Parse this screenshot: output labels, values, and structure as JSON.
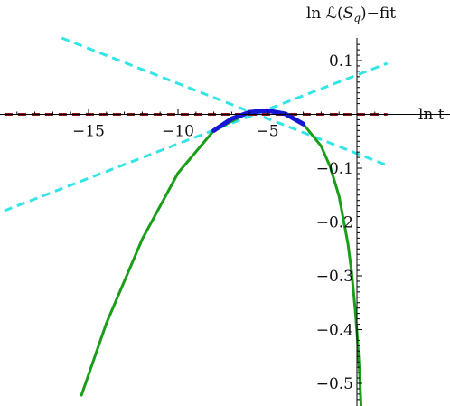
{
  "chart_data": {
    "type": "line",
    "title": "",
    "xlabel": "ln t",
    "ylabel": "ln ℒ(S_q)−fit",
    "ylabel_parts": {
      "pre": "ln ℒ(",
      "var": "S",
      "sub": "q",
      "post": ")−fit"
    },
    "xlim": [
      -19.7,
      1.4
    ],
    "ylim": [
      -0.538,
      0.135
    ],
    "grid": false,
    "legend": "none",
    "x_ticks": [
      {
        "value": -15,
        "label": "−15"
      },
      {
        "value": -10,
        "label": "−10"
      },
      {
        "value": -5,
        "label": "−5"
      }
    ],
    "y_ticks": [
      {
        "value": 0.1,
        "label": "0.1"
      },
      {
        "value": -0.1,
        "label": "−0.1"
      },
      {
        "value": -0.2,
        "label": "−0.2"
      },
      {
        "value": -0.3,
        "label": "−0.3"
      },
      {
        "value": -0.4,
        "label": "−0.4"
      },
      {
        "value": -0.5,
        "label": "−0.5"
      }
    ],
    "series": [
      {
        "style": "dashed",
        "color": "#33e5e5",
        "x": [
          -16.5,
          1.7
        ],
        "y": [
          0.142,
          -0.095
        ]
      },
      {
        "style": "dashed",
        "color": "#33e5e5",
        "x": [
          -19.7,
          1.7
        ],
        "y": [
          -0.179,
          0.095
        ]
      },
      {
        "style": "dashed",
        "color": "#8b1a1a",
        "x": [
          -19.7,
          1.7
        ],
        "y": [
          0.0,
          0.0
        ]
      },
      {
        "style": "solid",
        "color": "#1a9e1a",
        "x": [
          -15.4,
          -14.0,
          -12.0,
          -10.0,
          -8.0,
          -6.0,
          -5.0,
          -4.0,
          -3.0,
          -2.0,
          -1.5,
          -1.0,
          -0.5,
          -0.3,
          -0.1,
          0.05,
          0.15,
          0.25
        ],
        "y": [
          -0.522,
          -0.388,
          -0.232,
          -0.109,
          -0.03,
          0.004,
          0.007,
          0.001,
          -0.018,
          -0.059,
          -0.097,
          -0.152,
          -0.241,
          -0.293,
          -0.362,
          -0.427,
          -0.483,
          -0.555
        ]
      },
      {
        "style": "solid-thick",
        "color": "#1515d4",
        "x": [
          -8.0,
          -7.0,
          -6.0,
          -5.0,
          -4.0,
          -3.0
        ],
        "y": [
          -0.03,
          -0.008,
          0.004,
          0.007,
          0.001,
          -0.018
        ]
      }
    ]
  }
}
